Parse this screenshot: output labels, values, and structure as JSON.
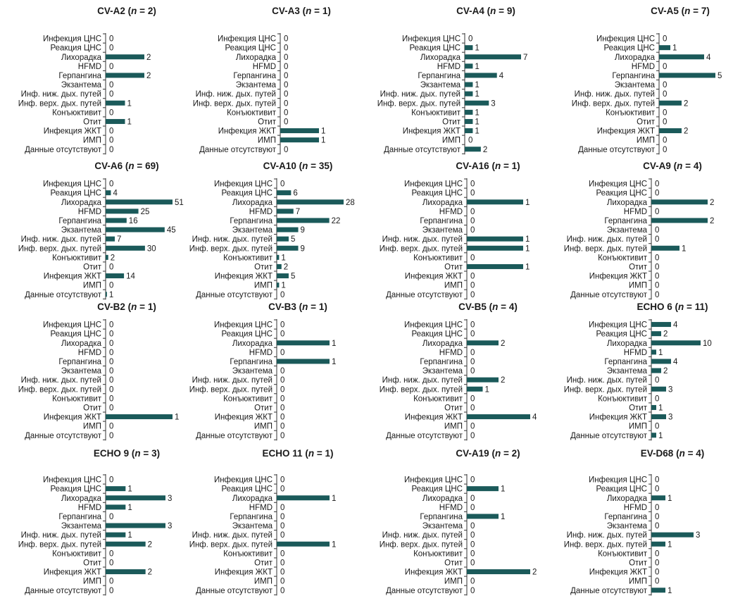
{
  "chart_data": {
    "type": "bar",
    "orientation": "horizontal",
    "bar_color": "#1b5a5a",
    "categories": [
      "Инфекция ЦНС",
      "Реакция ЦНС",
      "Лихорадка",
      "HFMD",
      "Герпангина",
      "Экзантема",
      "Инф. ниж. дых. путей",
      "Инф. верх. дых. путей",
      "Конъюктивит",
      "Отит",
      "Инфекция ЖКТ",
      "ИМП",
      "Данные отсутствуют"
    ],
    "panels": [
      {
        "name": "CV-A2",
        "n": 2,
        "values": [
          0,
          0,
          2,
          0,
          2,
          0,
          0,
          1,
          0,
          1,
          0,
          0,
          0
        ]
      },
      {
        "name": "CV-A3",
        "n": 1,
        "values": [
          0,
          0,
          0,
          0,
          0,
          0,
          0,
          0,
          0,
          0,
          1,
          1,
          0
        ]
      },
      {
        "name": "CV-A4",
        "n": 9,
        "values": [
          0,
          1,
          7,
          1,
          4,
          1,
          1,
          3,
          1,
          1,
          1,
          0,
          2
        ]
      },
      {
        "name": "CV-A5",
        "n": 7,
        "values": [
          0,
          1,
          4,
          0,
          5,
          0,
          0,
          2,
          0,
          0,
          2,
          0,
          0
        ]
      },
      {
        "name": "CV-A6",
        "n": 69,
        "values": [
          0,
          4,
          51,
          25,
          16,
          45,
          7,
          30,
          2,
          0,
          14,
          0,
          1
        ]
      },
      {
        "name": "CV-A10",
        "n": 35,
        "values": [
          0,
          6,
          28,
          7,
          22,
          9,
          5,
          9,
          1,
          2,
          5,
          1,
          0
        ]
      },
      {
        "name": "CV-A16",
        "n": 1,
        "values": [
          0,
          0,
          1,
          0,
          0,
          0,
          1,
          1,
          0,
          1,
          0,
          0,
          0
        ]
      },
      {
        "name": "CV-A9",
        "n": 4,
        "values": [
          0,
          0,
          2,
          0,
          2,
          0,
          0,
          1,
          0,
          0,
          0,
          0,
          0
        ]
      },
      {
        "name": "CV-B2",
        "n": 1,
        "values": [
          0,
          0,
          0,
          0,
          0,
          0,
          0,
          0,
          0,
          0,
          1,
          0,
          0
        ]
      },
      {
        "name": "CV-B3",
        "n": 1,
        "values": [
          0,
          0,
          1,
          0,
          1,
          0,
          0,
          0,
          0,
          0,
          0,
          0,
          0
        ]
      },
      {
        "name": "CV-B5",
        "n": 4,
        "values": [
          0,
          0,
          2,
          0,
          0,
          0,
          2,
          1,
          0,
          0,
          4,
          0,
          0
        ]
      },
      {
        "name": "ECHO 6",
        "n": 11,
        "values": [
          4,
          2,
          10,
          1,
          4,
          2,
          0,
          3,
          0,
          1,
          3,
          0,
          1
        ]
      },
      {
        "name": "ECHO 9",
        "n": 3,
        "values": [
          0,
          1,
          3,
          1,
          0,
          3,
          1,
          2,
          0,
          0,
          2,
          0,
          0
        ]
      },
      {
        "name": "ECHO 11",
        "n": 1,
        "values": [
          0,
          0,
          1,
          0,
          0,
          0,
          0,
          1,
          0,
          0,
          0,
          0,
          0
        ]
      },
      {
        "name": "CV-A19",
        "n": 2,
        "values": [
          0,
          1,
          0,
          0,
          1,
          0,
          0,
          0,
          0,
          0,
          2,
          0,
          0
        ]
      },
      {
        "name": "EV-D68",
        "n": 4,
        "values": [
          0,
          0,
          1,
          0,
          0,
          0,
          3,
          1,
          0,
          0,
          0,
          0,
          1
        ]
      }
    ],
    "title_format": "{name} (n = {n})",
    "xlabel": "",
    "ylabel": "",
    "grid": false,
    "legend": "none"
  }
}
